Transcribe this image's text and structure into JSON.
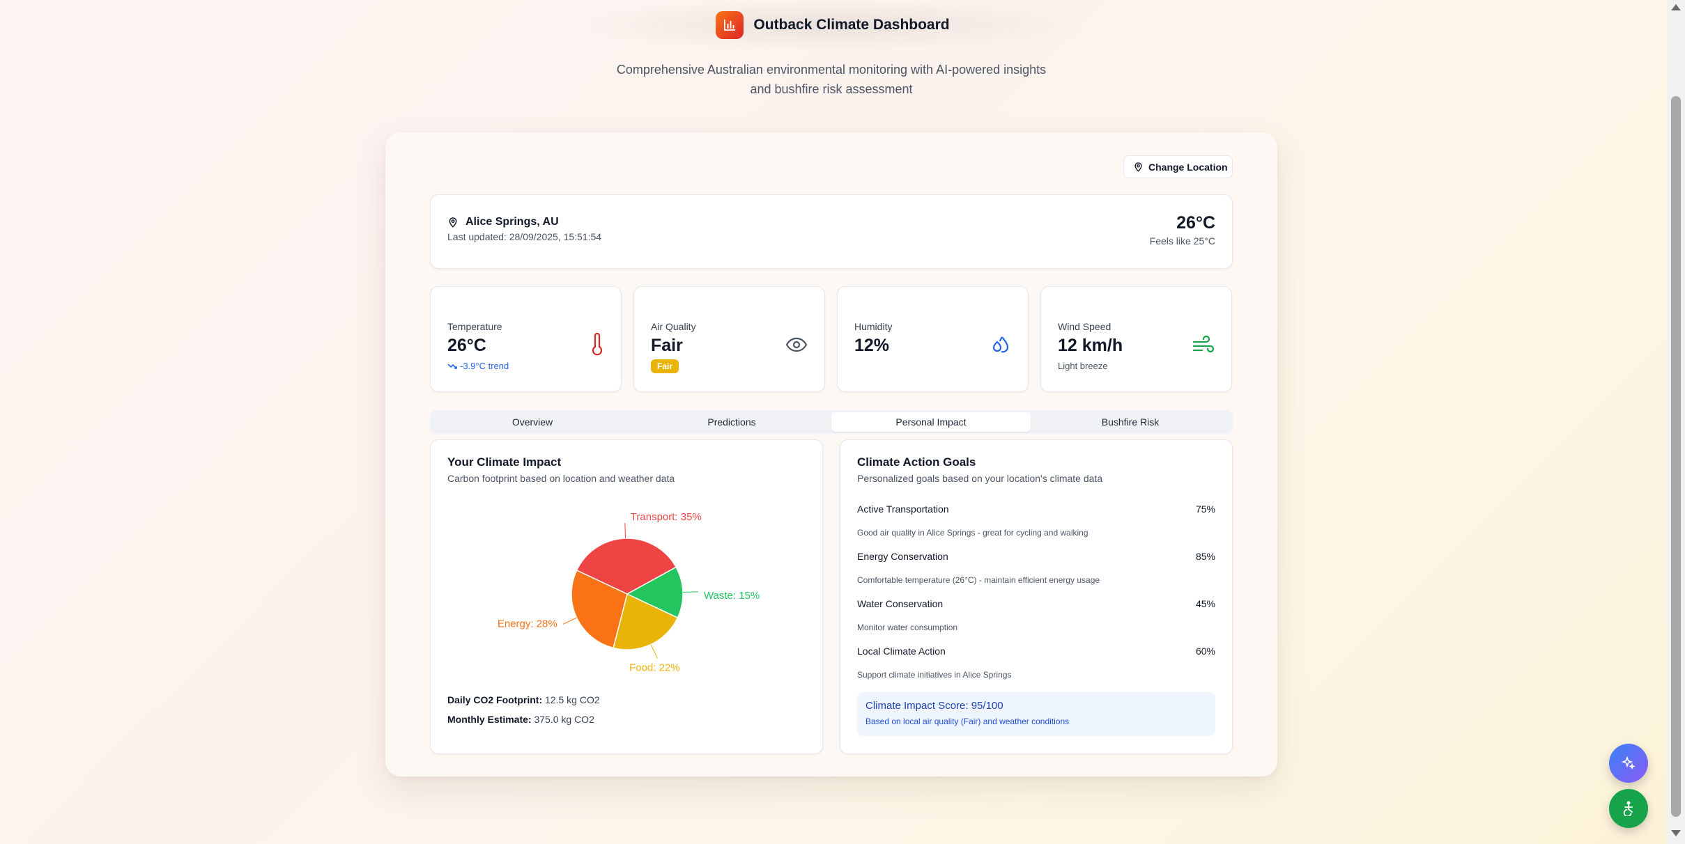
{
  "header": {
    "title": "Outback Climate Dashboard",
    "subtitle_line1": "Comprehensive Australian environmental monitoring with AI-powered insights",
    "subtitle_line2": "and bushfire risk assessment"
  },
  "toolbar": {
    "change_location_label": "Change Location"
  },
  "location": {
    "name": "Alice Springs, AU",
    "last_updated": "Last updated: 28/09/2025, 15:51:54",
    "temperature": "26°C",
    "feels_like": "Feels like 25°C"
  },
  "metrics": [
    {
      "label": "Temperature",
      "value": "26°C",
      "trend": "-3.9°C trend",
      "icon": "thermometer-icon",
      "color": "#dc2626"
    },
    {
      "label": "Air Quality",
      "value": "Fair",
      "badge": "Fair",
      "icon": "eye-icon",
      "color": "#4b5563"
    },
    {
      "label": "Humidity",
      "value": "12%",
      "icon": "droplets-icon",
      "color": "#2563eb"
    },
    {
      "label": "Wind Speed",
      "value": "12 km/h",
      "sub": "Light breeze",
      "icon": "wind-icon",
      "color": "#16a34a"
    }
  ],
  "tabs": [
    {
      "label": "Overview",
      "active": false
    },
    {
      "label": "Predictions",
      "active": false
    },
    {
      "label": "Personal Impact",
      "active": true
    },
    {
      "label": "Bushfire Risk",
      "active": false
    }
  ],
  "impact": {
    "title": "Your Climate Impact",
    "subtitle": "Carbon footprint based on location and weather data",
    "daily_label": "Daily CO2 Footprint:",
    "daily_value": "12.5 kg CO2",
    "monthly_label": "Monthly Estimate:",
    "monthly_value": "375.0 kg CO2"
  },
  "chart_data": {
    "type": "pie",
    "slices": [
      {
        "name": "Transport",
        "value": 35,
        "label": "Transport: 35%",
        "color": "#ef4444"
      },
      {
        "name": "Waste",
        "value": 15,
        "label": "Waste: 15%",
        "color": "#22c55e"
      },
      {
        "name": "Food",
        "value": 22,
        "label": "Food: 22%",
        "color": "#eab308"
      },
      {
        "name": "Energy",
        "value": 28,
        "label": "Energy: 28%",
        "color": "#f97316"
      }
    ]
  },
  "goals": {
    "title": "Climate Action Goals",
    "subtitle": "Personalized goals based on your location's climate data",
    "items": [
      {
        "name": "Active Transportation",
        "percent": "75%",
        "desc": "Good air quality in Alice Springs - great for cycling and walking"
      },
      {
        "name": "Energy Conservation",
        "percent": "85%",
        "desc": "Comfortable temperature (26°C) - maintain efficient energy usage"
      },
      {
        "name": "Water Conservation",
        "percent": "45%",
        "desc": "Monitor water consumption"
      },
      {
        "name": "Local Climate Action",
        "percent": "60%",
        "desc": "Support climate initiatives in Alice Springs"
      }
    ],
    "score_title": "Climate Impact Score: 95/100",
    "score_sub": "Based on local air quality (Fair) and weather conditions"
  },
  "colors": {
    "accent": "#f97316",
    "brand": "#dc2626",
    "score_bg": "#eff5ff"
  }
}
